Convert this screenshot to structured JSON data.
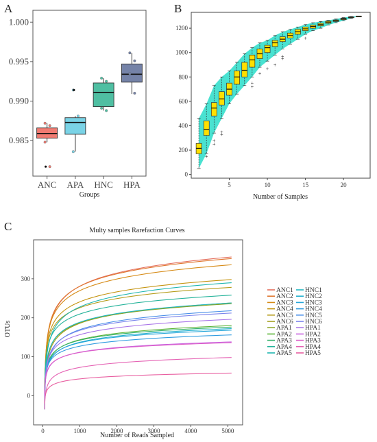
{
  "panels": {
    "a": {
      "letter": "A"
    },
    "b": {
      "letter": "B"
    },
    "c": {
      "letter": "C"
    }
  },
  "chart_data": [
    {
      "type": "box",
      "panel": "A",
      "categories": [
        "ANC",
        "APA",
        "HNC",
        "HPA"
      ],
      "xlabel": "Groups",
      "ylabel": "",
      "ylim": [
        0.9805,
        1.0015
      ],
      "yticks": [
        "0.985",
        "0.990",
        "0.995",
        "1.000"
      ],
      "colors": [
        "#f07b72",
        "#7ad3e6",
        "#4fbfa2",
        "#7583a8"
      ],
      "boxes": [
        {
          "name": "ANC",
          "min": 0.9848,
          "q1": 0.9853,
          "median": 0.9859,
          "q3": 0.9866,
          "max": 0.9872,
          "outliers": [
            0.9817
          ],
          "points": [
            0.9872,
            0.9869,
            0.9848,
            0.9817
          ]
        },
        {
          "name": "APA",
          "min": 0.9836,
          "q1": 0.9858,
          "median": 0.9873,
          "q3": 0.9879,
          "max": 0.9881,
          "outliers": [
            0.9914
          ],
          "points": [
            0.9914,
            0.9881,
            0.9836
          ]
        },
        {
          "name": "HNC",
          "min": 0.9888,
          "q1": 0.9893,
          "median": 0.9911,
          "q3": 0.9923,
          "max": 0.9929,
          "outliers": [],
          "points": [
            0.9929,
            0.9925,
            0.9891,
            0.9888
          ]
        },
        {
          "name": "HPA",
          "min": 0.9909,
          "q1": 0.9924,
          "median": 0.9934,
          "q3": 0.9947,
          "max": 0.9961,
          "outliers": [],
          "points": [
            0.9961,
            0.9951,
            0.9935,
            0.991
          ]
        }
      ]
    },
    {
      "type": "box",
      "panel": "B",
      "xlabel": "Number of Samples",
      "ylabel": "",
      "xlim": [
        0,
        23.5
      ],
      "ylim": [
        -30,
        1330
      ],
      "xticks": [
        "5",
        "10",
        "15",
        "20"
      ],
      "yticks": [
        "0",
        "200",
        "400",
        "600",
        "800",
        "1000",
        "1200"
      ],
      "band_color": "#3fe0cf",
      "box_color": "#ffe000",
      "boxes": [
        {
          "n": 1,
          "min": 50,
          "q1": 170,
          "median": 215,
          "q3": 255,
          "max": 460,
          "outliers": []
        },
        {
          "n": 2,
          "min": 170,
          "q1": 320,
          "median": 370,
          "q3": 440,
          "max": 580,
          "outliers": [
            150
          ]
        },
        {
          "n": 3,
          "min": 340,
          "q1": 480,
          "median": 545,
          "q3": 590,
          "max": 730,
          "outliers": [
            250,
            280
          ]
        },
        {
          "n": 4,
          "min": 460,
          "q1": 570,
          "median": 620,
          "q3": 680,
          "max": 800,
          "outliers": [
            330,
            350
          ]
        },
        {
          "n": 5,
          "min": 580,
          "q1": 650,
          "median": 700,
          "q3": 750,
          "max": 850,
          "outliers": []
        },
        {
          "n": 6,
          "min": 660,
          "q1": 740,
          "median": 800,
          "q3": 850,
          "max": 920,
          "outliers": []
        },
        {
          "n": 7,
          "min": 730,
          "q1": 800,
          "median": 855,
          "q3": 920,
          "max": 990,
          "outliers": []
        },
        {
          "n": 8,
          "min": 800,
          "q1": 880,
          "median": 940,
          "q3": 980,
          "max": 1040,
          "outliers": [
            720,
            750
          ]
        },
        {
          "n": 9,
          "min": 880,
          "q1": 950,
          "median": 990,
          "q3": 1030,
          "max": 1080,
          "outliers": [
            830
          ]
        },
        {
          "n": 10,
          "min": 930,
          "q1": 1000,
          "median": 1040,
          "q3": 1060,
          "max": 1100,
          "outliers": [
            870
          ]
        },
        {
          "n": 11,
          "min": 980,
          "q1": 1050,
          "median": 1080,
          "q3": 1100,
          "max": 1140,
          "outliers": [
            900
          ]
        },
        {
          "n": 12,
          "min": 1030,
          "q1": 1090,
          "median": 1110,
          "q3": 1130,
          "max": 1170,
          "outliers": [
            950,
            970
          ]
        },
        {
          "n": 13,
          "min": 1070,
          "q1": 1120,
          "median": 1140,
          "q3": 1160,
          "max": 1190,
          "outliers": []
        },
        {
          "n": 14,
          "min": 1110,
          "q1": 1150,
          "median": 1170,
          "q3": 1190,
          "max": 1210,
          "outliers": []
        },
        {
          "n": 15,
          "min": 1150,
          "q1": 1180,
          "median": 1195,
          "q3": 1210,
          "max": 1230,
          "outliers": [
            1120
          ]
        },
        {
          "n": 16,
          "min": 1180,
          "q1": 1200,
          "median": 1215,
          "q3": 1225,
          "max": 1245,
          "outliers": []
        },
        {
          "n": 17,
          "min": 1200,
          "q1": 1220,
          "median": 1230,
          "q3": 1240,
          "max": 1255,
          "outliers": []
        },
        {
          "n": 18,
          "min": 1225,
          "q1": 1240,
          "median": 1250,
          "q3": 1258,
          "max": 1265,
          "outliers": []
        },
        {
          "n": 19,
          "min": 1245,
          "q1": 1255,
          "median": 1262,
          "q3": 1268,
          "max": 1275,
          "outliers": []
        },
        {
          "n": 20,
          "min": 1262,
          "q1": 1270,
          "median": 1276,
          "q3": 1282,
          "max": 1287,
          "outliers": []
        },
        {
          "n": 21,
          "min": 1280,
          "q1": 1285,
          "median": 1290,
          "q3": 1293,
          "max": 1296,
          "outliers": []
        },
        {
          "n": 22,
          "min": 1298,
          "q1": 1298,
          "median": 1298,
          "q3": 1298,
          "max": 1298,
          "outliers": []
        }
      ]
    },
    {
      "type": "line",
      "panel": "C",
      "title": "Multy samples Rarefaction Curves",
      "xlabel": "Number of Reads Sampled",
      "ylabel": "OTUs",
      "xlim": [
        -250,
        5400
      ],
      "ylim": [
        -75,
        400
      ],
      "xticks": [
        "0",
        "1000",
        "2000",
        "3000",
        "4000",
        "5000"
      ],
      "yticks": [
        "0",
        "100",
        "200",
        "300"
      ],
      "x_end": 5100,
      "series": [
        {
          "name": "ANC1",
          "color": "#e46e5c",
          "end": 356
        },
        {
          "name": "ANC2",
          "color": "#e0772f",
          "end": 352
        },
        {
          "name": "ANC3",
          "color": "#d68a15",
          "end": 336
        },
        {
          "name": "ANC4",
          "color": "#c49410",
          "end": 298
        },
        {
          "name": "ANC5",
          "color": "#b59c1a",
          "end": 278
        },
        {
          "name": "ANC6",
          "color": "#a6a01f",
          "end": 238
        },
        {
          "name": "APA1",
          "color": "#8aa524",
          "end": 236
        },
        {
          "name": "APA2",
          "color": "#5eb53a",
          "end": 180
        },
        {
          "name": "APA3",
          "color": "#34b26a",
          "end": 176
        },
        {
          "name": "APA4",
          "color": "#25b39a",
          "end": 258
        },
        {
          "name": "APA5",
          "color": "#1eb6b0",
          "end": 290
        },
        {
          "name": "HNC1",
          "color": "#1fb7c2",
          "end": 238
        },
        {
          "name": "HNC2",
          "color": "#21b0cf",
          "end": 172
        },
        {
          "name": "HNC3",
          "color": "#26a6da",
          "end": 168
        },
        {
          "name": "HNC4",
          "color": "#2f9be0",
          "end": 156
        },
        {
          "name": "HNC5",
          "color": "#4a8fe8",
          "end": 218
        },
        {
          "name": "HNC6",
          "color": "#7a84ec",
          "end": 212
        },
        {
          "name": "HPA1",
          "color": "#a874e8",
          "end": 196
        },
        {
          "name": "HPA2",
          "color": "#c964e0",
          "end": 138
        },
        {
          "name": "HPA3",
          "color": "#dd5ec8",
          "end": 136
        },
        {
          "name": "HPA4",
          "color": "#e563b4",
          "end": 98
        },
        {
          "name": "HPA5",
          "color": "#e85ea0",
          "end": 58
        }
      ]
    }
  ]
}
